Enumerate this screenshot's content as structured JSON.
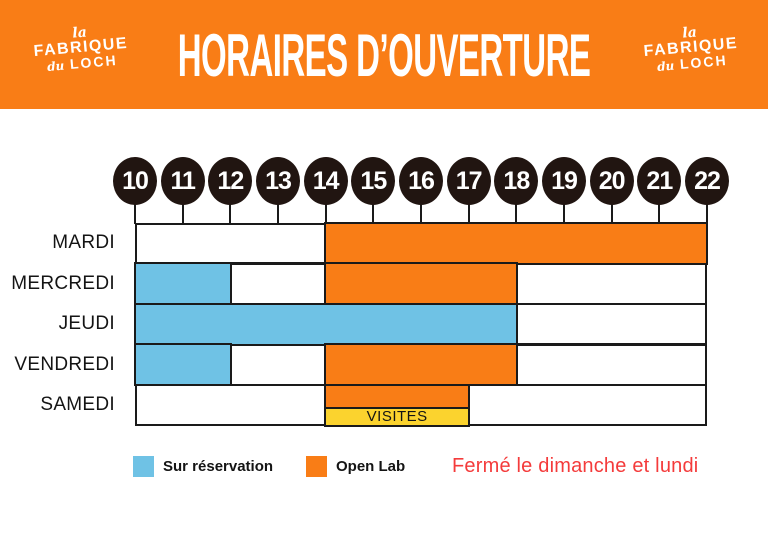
{
  "header": {
    "title": "HORAIRES D’OUVERTURE",
    "bg_color": "#F97D16",
    "text_color": "#FFFFFF",
    "logo": {
      "line1": "la",
      "line2": "FABRIQUE",
      "line3_prefix": "du",
      "line3": "LOCH"
    }
  },
  "chart_data": {
    "type": "schedule-gantt",
    "title": "HORAIRES D’OUVERTURE",
    "x_axis": {
      "start": 10,
      "end": 22,
      "unit": "hour",
      "ticks": [
        10,
        11,
        12,
        13,
        14,
        15,
        16,
        17,
        18,
        19,
        20,
        21,
        22
      ]
    },
    "rows": [
      {
        "label": "MARDI",
        "segments": [
          {
            "start": 14,
            "end": 22,
            "type": "open_lab"
          }
        ]
      },
      {
        "label": "MERCREDI",
        "segments": [
          {
            "start": 10,
            "end": 12,
            "type": "sur_reservation"
          },
          {
            "start": 14,
            "end": 18,
            "type": "open_lab"
          }
        ]
      },
      {
        "label": "JEUDI",
        "segments": [
          {
            "start": 10,
            "end": 18,
            "type": "sur_reservation"
          }
        ]
      },
      {
        "label": "VENDREDI",
        "segments": [
          {
            "start": 10,
            "end": 12,
            "type": "sur_reservation"
          },
          {
            "start": 14,
            "end": 18,
            "type": "open_lab"
          }
        ]
      },
      {
        "label": "SAMEDI",
        "segments": [
          {
            "start": 14,
            "end": 17,
            "type": "open_lab_visites",
            "label": "VISITES"
          }
        ]
      }
    ],
    "legend": [
      {
        "label": "Sur réservation",
        "type": "sur_reservation",
        "color": "#6FC2E5"
      },
      {
        "label": "Open Lab",
        "type": "open_lab",
        "color": "#F97D16"
      }
    ],
    "note": "Fermé le dimanche et lundi",
    "note_color": "#F43B3B",
    "colors": {
      "sur_reservation": "#6FC2E5",
      "open_lab": "#F97D16",
      "visites": "#FBD32E",
      "grid_line": "#1A1A1A",
      "tick_circle": "#211511"
    },
    "grid": {
      "line_visible": true,
      "legend_position": "bottom"
    }
  }
}
